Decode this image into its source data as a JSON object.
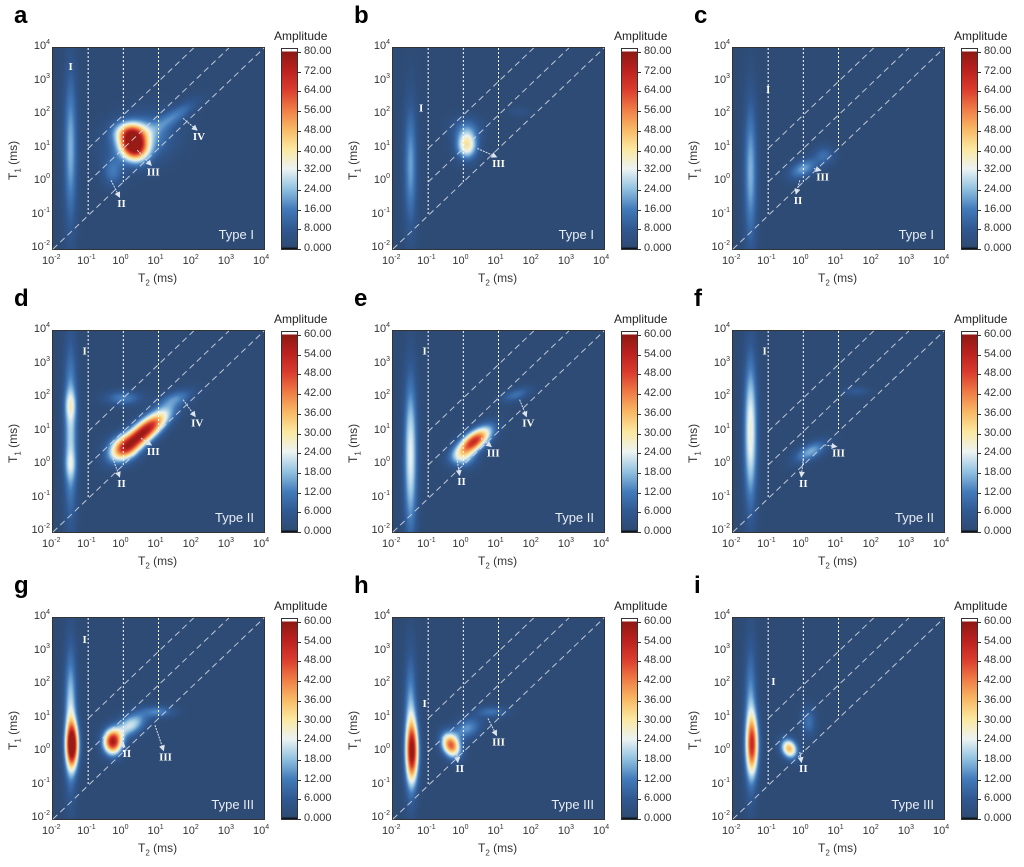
{
  "chart_data": {
    "type": "heatmap",
    "common": {
      "x_axis": {
        "main": "T",
        "sub": "2",
        "unit": " (ms)",
        "scale": "log",
        "range": [
          0.01,
          10000
        ]
      },
      "y_axis": {
        "main": "T",
        "sub": "1",
        "unit": " (ms)",
        "scale": "log",
        "range": [
          0.01,
          10000
        ]
      },
      "tick_labels": [
        {
          "base": "10",
          "exp": "-2"
        },
        {
          "base": "10",
          "exp": "-1"
        },
        {
          "base": "10",
          "exp": "0"
        },
        {
          "base": "10",
          "exp": "1"
        },
        {
          "base": "10",
          "exp": "2"
        },
        {
          "base": "10",
          "exp": "3"
        },
        {
          "base": "10",
          "exp": "4"
        }
      ],
      "colorbar_title": "Amplitude",
      "reference_lines": {
        "vertical_T2_ms": [
          0.1,
          1,
          10
        ],
        "diagonal_T1_over_T2": [
          1,
          10,
          100
        ]
      },
      "colors": {
        "background": "#2e4b75",
        "low": "#3f78b8",
        "mid": "#e8f2f2",
        "high": "#d93a2c",
        "max": "#8e1a14",
        "lines": "#ffffff"
      }
    },
    "colorbars": {
      "80": [
        "80.00",
        "72.00",
        "64.00",
        "56.00",
        "48.00",
        "40.00",
        "32.00",
        "24.00",
        "16.00",
        "8.000",
        "0.000"
      ],
      "60": [
        "60.00",
        "54.00",
        "48.00",
        "42.00",
        "36.00",
        "30.00",
        "24.00",
        "18.00",
        "12.00",
        "6.000",
        "0.000"
      ]
    },
    "panels": [
      {
        "letter": "a",
        "type_label": "Type I",
        "cmax": 80,
        "peaks_log10": [
          [
            -1.5,
            1.0,
            0.13,
            1.6,
            0,
            22
          ],
          [
            0.3,
            1.1,
            0.25,
            0.3,
            20,
            78
          ],
          [
            0.2,
            1.5,
            0.3,
            0.2,
            0,
            30
          ],
          [
            0.5,
            1.3,
            0.6,
            0.45,
            20,
            22
          ],
          [
            1.5,
            2.0,
            0.5,
            0.15,
            35,
            14
          ],
          [
            -0.3,
            0.3,
            0.2,
            0.3,
            0,
            14
          ]
        ],
        "annotations": [
          {
            "text": "I",
            "at": [
              -1.5,
              3.35
            ]
          },
          {
            "text": "II",
            "at": [
              -0.05,
              -0.75
            ],
            "from": [
              -0.35,
              0.05
            ]
          },
          {
            "text": "III",
            "at": [
              0.85,
              0.2
            ],
            "from": [
              0.4,
              0.95
            ]
          },
          {
            "text": "IV",
            "at": [
              2.15,
              1.25
            ],
            "from": [
              1.7,
              1.9
            ]
          }
        ]
      },
      {
        "letter": "b",
        "type_label": "Type I",
        "cmax": 80,
        "peaks_log10": [
          [
            -1.5,
            0.5,
            0.13,
            1.3,
            0,
            20
          ],
          [
            0.1,
            1.1,
            0.2,
            0.28,
            0,
            40
          ],
          [
            0.1,
            1.6,
            0.3,
            0.25,
            0,
            12
          ],
          [
            1.6,
            2.1,
            0.2,
            0.1,
            0,
            5
          ]
        ],
        "annotations": [
          {
            "text": "I",
            "at": [
              -1.2,
              2.1
            ]
          },
          {
            "text": "III",
            "at": [
              1.0,
              0.45
            ],
            "from": [
              0.4,
              1.0
            ]
          }
        ]
      },
      {
        "letter": "c",
        "type_label": "Type I",
        "cmax": 80,
        "peaks_log10": [
          [
            -1.5,
            0.3,
            0.13,
            1.5,
            0,
            22
          ],
          [
            0.0,
            0.4,
            0.3,
            0.17,
            30,
            20
          ],
          [
            0.6,
            0.8,
            0.2,
            0.2,
            0,
            12
          ]
        ],
        "annotations": [
          {
            "text": "I",
            "at": [
              -1.0,
              2.65
            ]
          },
          {
            "text": "II",
            "at": [
              -0.15,
              -0.65
            ],
            "from": [
              -0.1,
              0.05
            ]
          },
          {
            "text": "III",
            "at": [
              0.55,
              0.05
            ],
            "from": [
              0.3,
              0.4
            ]
          }
        ]
      },
      {
        "letter": "d",
        "type_label": "Type II",
        "cmax": 60,
        "peaks_log10": [
          [
            -1.5,
            1.0,
            0.13,
            1.7,
            0,
            20
          ],
          [
            -1.5,
            1.8,
            0.12,
            0.3,
            0,
            10
          ],
          [
            -1.5,
            0.0,
            0.12,
            0.3,
            0,
            8
          ],
          [
            0.6,
            1.0,
            0.6,
            0.2,
            42,
            58
          ],
          [
            0.0,
            0.5,
            0.3,
            0.25,
            30,
            30
          ],
          [
            1.5,
            2.0,
            0.35,
            0.15,
            20,
            10
          ],
          [
            0.0,
            2.0,
            0.35,
            0.15,
            0,
            12
          ]
        ],
        "annotations": [
          {
            "text": "I",
            "at": [
              -1.1,
              3.3
            ]
          },
          {
            "text": "II",
            "at": [
              -0.05,
              -0.65
            ],
            "from": [
              -0.3,
              0.2
            ]
          },
          {
            "text": "III",
            "at": [
              0.85,
              0.3
            ],
            "from": [
              0.5,
              0.8
            ]
          },
          {
            "text": "IV",
            "at": [
              2.1,
              1.15
            ],
            "from": [
              1.7,
              1.95
            ]
          }
        ]
      },
      {
        "letter": "e",
        "type_label": "Type II",
        "cmax": 60,
        "peaks_log10": [
          [
            -1.5,
            0.3,
            0.13,
            1.6,
            0,
            24
          ],
          [
            0.3,
            0.7,
            0.4,
            0.18,
            40,
            52
          ],
          [
            1.5,
            2.1,
            0.3,
            0.12,
            20,
            10
          ],
          [
            0.0,
            0.2,
            0.25,
            0.2,
            0,
            14
          ]
        ],
        "annotations": [
          {
            "text": "I",
            "at": [
              -1.1,
              3.3
            ]
          },
          {
            "text": "II",
            "at": [
              -0.05,
              -0.6
            ],
            "from": [
              -0.2,
              0.3
            ]
          },
          {
            "text": "III",
            "at": [
              0.85,
              0.25
            ],
            "from": [
              0.5,
              0.8
            ]
          },
          {
            "text": "IV",
            "at": [
              1.85,
              1.15
            ],
            "from": [
              1.6,
              1.95
            ]
          }
        ]
      },
      {
        "letter": "f",
        "type_label": "Type II",
        "cmax": 60,
        "peaks_log10": [
          [
            -1.5,
            1.0,
            0.13,
            1.5,
            0,
            26
          ],
          [
            0.2,
            0.4,
            0.35,
            0.16,
            30,
            16
          ],
          [
            1.5,
            2.2,
            0.25,
            0.1,
            0,
            6
          ]
        ],
        "annotations": [
          {
            "text": "I",
            "at": [
              -1.1,
              3.3
            ]
          },
          {
            "text": "II",
            "at": [
              0.0,
              -0.65
            ],
            "from": [
              0.0,
              0.2
            ]
          },
          {
            "text": "III",
            "at": [
              1.0,
              0.25
            ],
            "from": [
              0.6,
              0.6
            ]
          }
        ]
      },
      {
        "letter": "g",
        "type_label": "Type III",
        "cmax": 60,
        "peaks_log10": [
          [
            -1.45,
            0.2,
            0.12,
            0.45,
            0,
            56
          ],
          [
            -1.5,
            1.0,
            0.12,
            1.4,
            0,
            22
          ],
          [
            -0.3,
            0.3,
            0.18,
            0.25,
            0,
            55
          ],
          [
            0.2,
            0.8,
            0.35,
            0.2,
            35,
            22
          ],
          [
            1.0,
            1.2,
            0.3,
            0.12,
            0,
            12
          ]
        ],
        "annotations": [
          {
            "text": "I",
            "at": [
              -1.1,
              3.25
            ]
          },
          {
            "text": "II",
            "at": [
              0.1,
              -0.15
            ],
            "from": [
              -0.1,
              0.3
            ]
          },
          {
            "text": "III",
            "at": [
              1.2,
              -0.25
            ],
            "from": [
              0.9,
              0.8
            ]
          }
        ]
      },
      {
        "letter": "h",
        "type_label": "Type III",
        "cmax": 60,
        "peaks_log10": [
          [
            -1.45,
            0.0,
            0.12,
            0.6,
            0,
            48
          ],
          [
            -1.5,
            0.8,
            0.12,
            1.4,
            0,
            18
          ],
          [
            -0.35,
            0.2,
            0.17,
            0.25,
            20,
            45
          ],
          [
            0.1,
            0.7,
            0.3,
            0.2,
            30,
            14
          ],
          [
            0.8,
            1.2,
            0.3,
            0.12,
            0,
            10
          ]
        ],
        "annotations": [
          {
            "text": "I",
            "at": [
              -1.1,
              1.35
            ]
          },
          {
            "text": "II",
            "at": [
              -0.1,
              -0.6
            ],
            "from": [
              -0.2,
              0.1
            ]
          },
          {
            "text": "III",
            "at": [
              1.0,
              0.2
            ],
            "from": [
              0.7,
              1.0
            ]
          }
        ]
      },
      {
        "letter": "i",
        "type_label": "Type III",
        "cmax": 60,
        "peaks_log10": [
          [
            -1.45,
            0.2,
            0.12,
            0.6,
            0,
            40
          ],
          [
            -1.5,
            1.0,
            0.12,
            1.5,
            0,
            16
          ],
          [
            -0.4,
            0.1,
            0.15,
            0.2,
            20,
            36
          ],
          [
            0.15,
            0.9,
            0.15,
            0.3,
            0,
            10
          ]
        ],
        "annotations": [
          {
            "text": "I",
            "at": [
              -0.85,
              2.0
            ]
          },
          {
            "text": "II",
            "at": [
              0.0,
              -0.6
            ],
            "from": [
              -0.1,
              0.0
            ]
          }
        ]
      }
    ]
  }
}
